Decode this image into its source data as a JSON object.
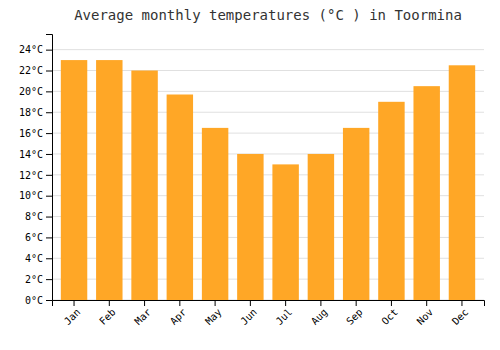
{
  "chart_data": {
    "type": "bar",
    "title": "Average monthly temperatures (°C ) in Toormina",
    "categories": [
      "Jan",
      "Feb",
      "Mar",
      "Apr",
      "May",
      "Jun",
      "Jul",
      "Aug",
      "Sep",
      "Oct",
      "Nov",
      "Dec"
    ],
    "values": [
      23.0,
      23.0,
      22.0,
      19.7,
      16.5,
      14.0,
      13.0,
      14.0,
      16.5,
      19.0,
      20.5,
      22.5
    ],
    "color": "#FFA726",
    "ylim": [
      0,
      25.5
    ],
    "yticks": [
      {
        "value": 0,
        "label": "0°C"
      },
      {
        "value": 2,
        "label": "2°C"
      },
      {
        "value": 4,
        "label": "4°C"
      },
      {
        "value": 6,
        "label": "6°C"
      },
      {
        "value": 8,
        "label": "8°C"
      },
      {
        "value": 10,
        "label": "10°C"
      },
      {
        "value": 12,
        "label": "12°C"
      },
      {
        "value": 14,
        "label": "14°C"
      },
      {
        "value": 16,
        "label": "16°C"
      },
      {
        "value": 18,
        "label": "18°C"
      },
      {
        "value": 20,
        "label": "20°C"
      },
      {
        "value": 22,
        "label": "22°C"
      },
      {
        "value": 24,
        "label": "24°C"
      }
    ],
    "grid": true
  }
}
